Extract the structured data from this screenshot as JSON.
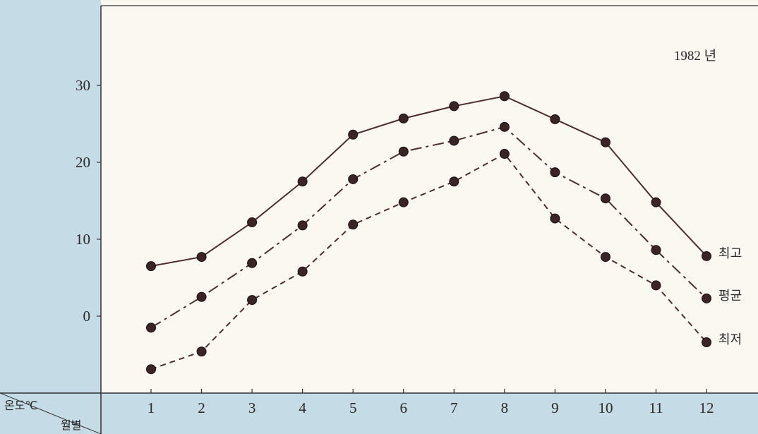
{
  "chart_data": {
    "type": "line",
    "year_label": "1982 년",
    "corner_top": "온도℃",
    "corner_bottom": "월별",
    "x": [
      1,
      2,
      3,
      4,
      5,
      6,
      7,
      8,
      9,
      10,
      11,
      12
    ],
    "y_ticks": [
      0,
      10,
      20,
      30
    ],
    "ylim": [
      -10,
      40
    ],
    "grid": false,
    "series": [
      {
        "name": "최고",
        "line_style": "solid",
        "values": [
          6.5,
          7.7,
          12.2,
          17.5,
          23.6,
          25.7,
          27.3,
          28.6,
          25.6,
          22.6,
          14.8,
          7.8
        ]
      },
      {
        "name": "평균",
        "line_style": "dashdot",
        "values": [
          -1.5,
          2.5,
          6.9,
          11.8,
          17.8,
          21.4,
          22.8,
          24.6,
          18.7,
          15.3,
          8.6,
          2.3
        ]
      },
      {
        "name": "최저",
        "line_style": "dashed",
        "values": [
          -6.9,
          -4.6,
          2.1,
          5.8,
          11.9,
          14.8,
          17.5,
          21.1,
          12.7,
          7.7,
          4.0,
          -3.4
        ]
      }
    ],
    "colors": {
      "panel": "#c5dbe6",
      "background": "#fbf7f1",
      "ink": "#3a2424",
      "line": "#4b2f2f"
    }
  }
}
